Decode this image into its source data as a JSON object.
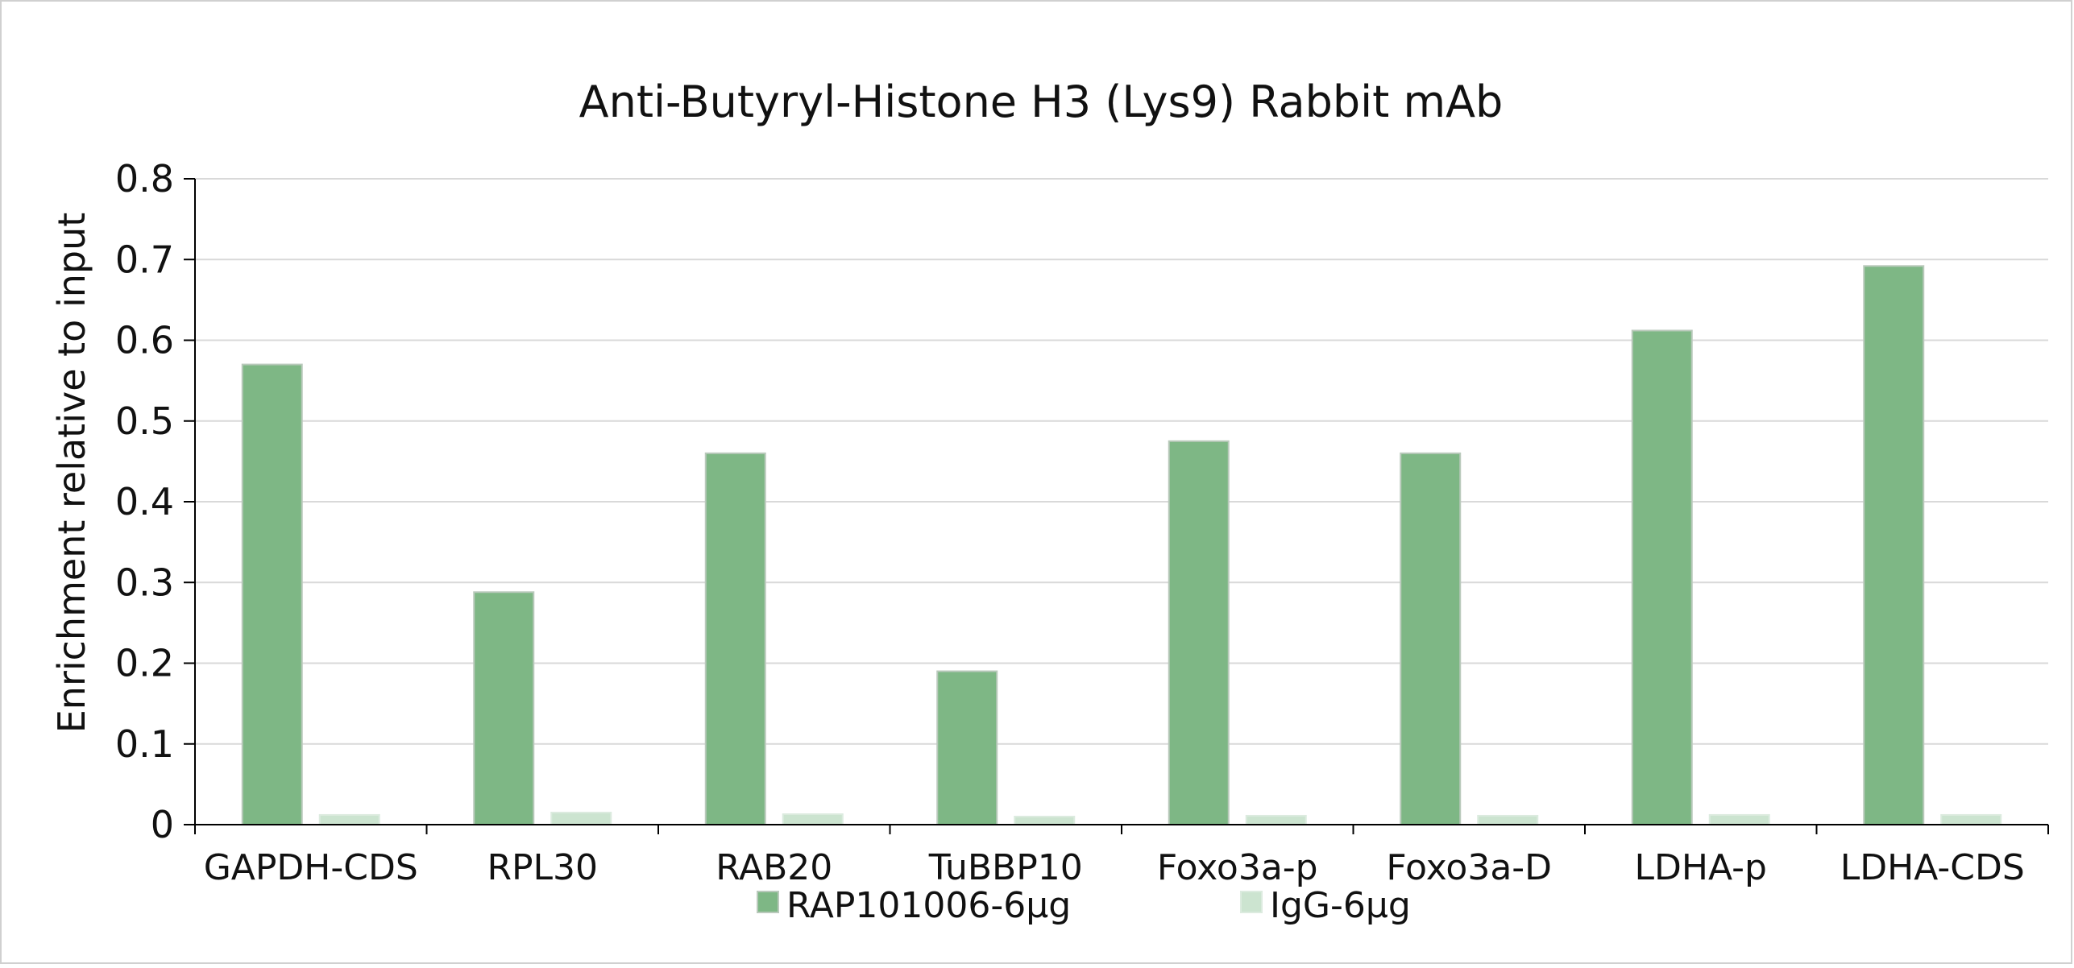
{
  "chart_data": {
    "type": "bar",
    "title": "Anti-Butyryl-Histone H3 (Lys9) Rabbit mAb",
    "xlabel": "",
    "ylabel": "Enrichment relative to input",
    "ylim": [
      0,
      0.8
    ],
    "yticks": [
      "0",
      "0.1",
      "0.2",
      "0.3",
      "0.4",
      "0.5",
      "0.6",
      "0.7",
      "0.8"
    ],
    "grid": true,
    "legend_position": "bottom",
    "categories": [
      "GAPDH-CDS",
      "RPL30",
      "RAB20",
      "TuBBP10",
      "Foxo3a-p",
      "Foxo3a-D",
      "LDHA-p",
      "LDHA-CDS"
    ],
    "series": [
      {
        "name": "RAP101006-6μg",
        "color": "#7eb785",
        "values": [
          0.57,
          0.288,
          0.46,
          0.19,
          0.475,
          0.46,
          0.612,
          0.692
        ]
      },
      {
        "name": "IgG-6μg",
        "color": "#cce4d0",
        "values": [
          0.012,
          0.015,
          0.013,
          0.01,
          0.011,
          0.011,
          0.012,
          0.012
        ]
      }
    ]
  }
}
